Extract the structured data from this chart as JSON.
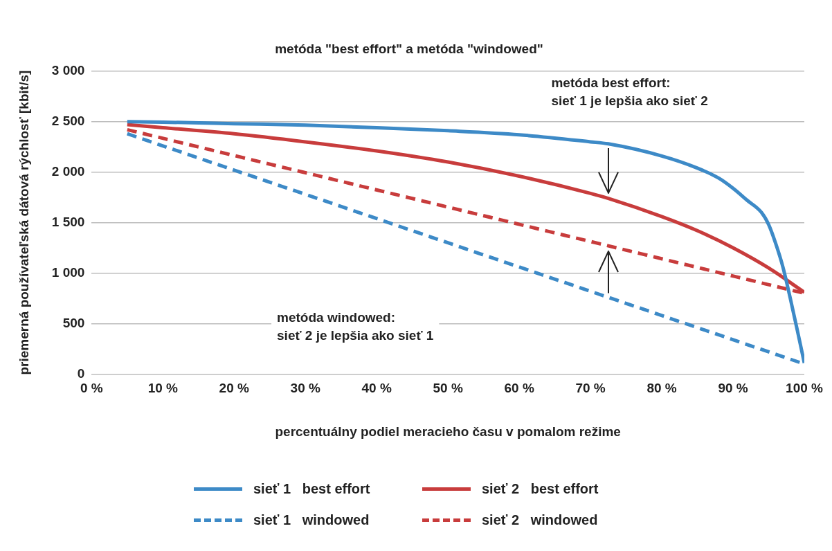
{
  "chart_data": {
    "type": "line",
    "title": "metóda \"best effort\" a metóda \"windowed\"",
    "xlabel": "percentuálny podiel meracieho času v pomalom režime",
    "ylabel": "priemerná používateľská dátová rýchlosť [kbit/s]",
    "xlim": [
      0,
      100
    ],
    "xticks": [
      {
        "value": 0,
        "label": "0 %"
      },
      {
        "value": 10,
        "label": "10 %"
      },
      {
        "value": 20,
        "label": "20 %"
      },
      {
        "value": 30,
        "label": "30 %"
      },
      {
        "value": 40,
        "label": "40 %"
      },
      {
        "value": 50,
        "label": "50 %"
      },
      {
        "value": 60,
        "label": "60 %"
      },
      {
        "value": 70,
        "label": "70 %"
      },
      {
        "value": 80,
        "label": "80 %"
      },
      {
        "value": 90,
        "label": "90 %"
      },
      {
        "value": 100,
        "label": "100 %"
      }
    ],
    "ylim": [
      0,
      3000
    ],
    "yticks": [
      {
        "value": 0,
        "label": "0"
      },
      {
        "value": 500,
        "label": "500"
      },
      {
        "value": 1000,
        "label": "1 000"
      },
      {
        "value": 1500,
        "label": "1 500"
      },
      {
        "value": 2000,
        "label": "2 000"
      },
      {
        "value": 2500,
        "label": "2 500"
      },
      {
        "value": 3000,
        "label": "3 000"
      }
    ],
    "grid": "y",
    "legend": "bottom",
    "marker": "none",
    "annotations": [
      "metóda best effort:\nsieť 1 je lepšia ako sieť 2",
      "metóda windowed:\nsieť 2 je lepšia ako sieť 1"
    ],
    "series": [
      {
        "name": "sieť 1   best effort",
        "color": "#3d8ac7",
        "line_style": "solid",
        "x": [
          5,
          10,
          20,
          30,
          40,
          50,
          60,
          70,
          72.5,
          80,
          85,
          88,
          90,
          92,
          94,
          95,
          96,
          97,
          98,
          99,
          100
        ],
        "values": [
          2500,
          2495,
          2480,
          2465,
          2440,
          2410,
          2370,
          2300,
          2280,
          2160,
          2040,
          1940,
          1840,
          1720,
          1600,
          1480,
          1290,
          1060,
          760,
          440,
          110
        ]
      },
      {
        "name": "sieť 2   best effort",
        "color": "#c83c3c",
        "line_style": "solid",
        "x": [
          5,
          10,
          20,
          30,
          40,
          50,
          60,
          70,
          72.5,
          80,
          85,
          90,
          95,
          100
        ],
        "values": [
          2470,
          2440,
          2380,
          2300,
          2210,
          2100,
          1960,
          1790,
          1740,
          1560,
          1420,
          1250,
          1050,
          810
        ]
      },
      {
        "name": "sieť 1   windowed",
        "color": "#3d8ac7",
        "line_style": "dashed",
        "x": [
          5,
          72.5,
          100
        ],
        "values": [
          2380,
          760,
          100
        ]
      },
      {
        "name": "sieť 2   windowed",
        "color": "#c83c3c",
        "line_style": "dashed",
        "x": [
          5,
          72.5,
          100
        ],
        "values": [
          2420,
          1270,
          800
        ]
      }
    ]
  }
}
